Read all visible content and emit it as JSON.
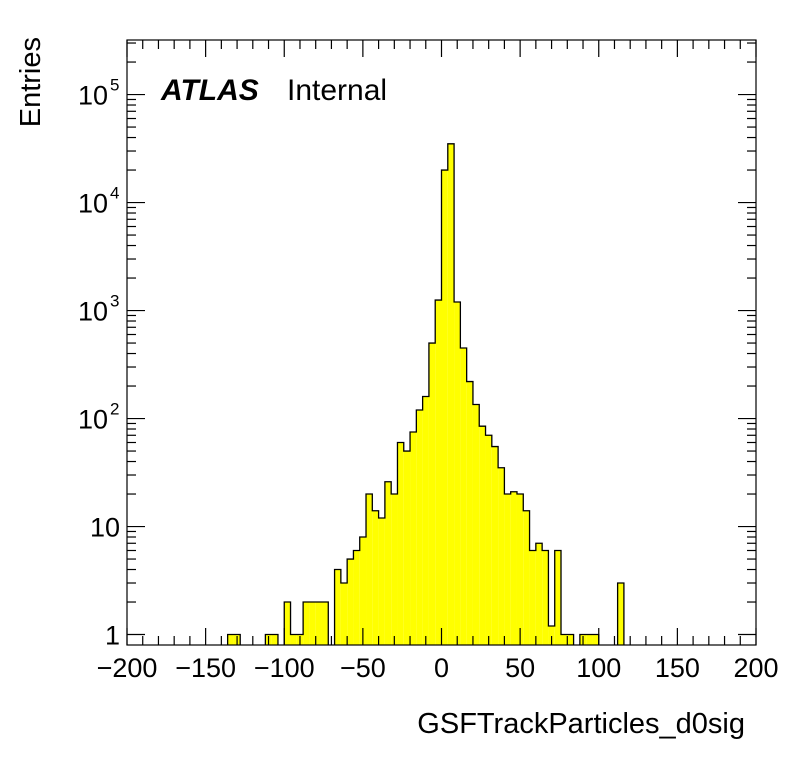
{
  "chart_data": {
    "type": "histogram",
    "xlabel": "GSFTrackParticles_d0sig",
    "ylabel": "Entries",
    "xlim": [
      -200,
      200
    ],
    "ylim": [
      0.8,
      320000
    ],
    "yscale": "log",
    "bin_width": 4,
    "fill_color": "#ffff00",
    "line_color": "#000000",
    "x_ticks": [
      -200,
      -150,
      -100,
      -50,
      0,
      50,
      100,
      150,
      200
    ],
    "x_tick_labels": [
      "−200",
      "−150",
      "−100",
      "−50",
      "0",
      "50",
      "100",
      "150",
      "200"
    ],
    "y_ticks": [
      1,
      10,
      100,
      1000,
      10000,
      100000
    ],
    "y_tick_labels": [
      {
        "base": "1",
        "exp": ""
      },
      {
        "base": "10",
        "exp": ""
      },
      {
        "base": "10",
        "exp": "2"
      },
      {
        "base": "10",
        "exp": "3"
      },
      {
        "base": "10",
        "exp": "4"
      },
      {
        "base": "10",
        "exp": "5"
      }
    ],
    "atlas_label": "ATLAS",
    "atlas_status": "Internal",
    "bins": [
      {
        "x": -136,
        "y": 1
      },
      {
        "x": -132,
        "y": 1
      },
      {
        "x": -112,
        "y": 1
      },
      {
        "x": -108,
        "y": 1
      },
      {
        "x": -100,
        "y": 2
      },
      {
        "x": -96,
        "y": 1
      },
      {
        "x": -92,
        "y": 1
      },
      {
        "x": -88,
        "y": 2
      },
      {
        "x": -84,
        "y": 2
      },
      {
        "x": -80,
        "y": 2
      },
      {
        "x": -76,
        "y": 2
      },
      {
        "x": -68,
        "y": 4
      },
      {
        "x": -64,
        "y": 3
      },
      {
        "x": -60,
        "y": 5
      },
      {
        "x": -56,
        "y": 6
      },
      {
        "x": -52,
        "y": 8
      },
      {
        "x": -48,
        "y": 20
      },
      {
        "x": -44,
        "y": 14
      },
      {
        "x": -40,
        "y": 12
      },
      {
        "x": -36,
        "y": 26
      },
      {
        "x": -32,
        "y": 20
      },
      {
        "x": -28,
        "y": 60
      },
      {
        "x": -24,
        "y": 50
      },
      {
        "x": -20,
        "y": 75
      },
      {
        "x": -16,
        "y": 120
      },
      {
        "x": -12,
        "y": 160
      },
      {
        "x": -8,
        "y": 500
      },
      {
        "x": -4,
        "y": 1250
      },
      {
        "x": 0,
        "y": 20000
      },
      {
        "x": 4,
        "y": 35000
      },
      {
        "x": 8,
        "y": 1200
      },
      {
        "x": 12,
        "y": 450
      },
      {
        "x": 16,
        "y": 220
      },
      {
        "x": 20,
        "y": 135
      },
      {
        "x": 24,
        "y": 85
      },
      {
        "x": 28,
        "y": 70
      },
      {
        "x": 32,
        "y": 55
      },
      {
        "x": 36,
        "y": 35
      },
      {
        "x": 40,
        "y": 20
      },
      {
        "x": 44,
        "y": 21
      },
      {
        "x": 48,
        "y": 20
      },
      {
        "x": 52,
        "y": 14
      },
      {
        "x": 56,
        "y": 6
      },
      {
        "x": 60,
        "y": 7
      },
      {
        "x": 64,
        "y": 6
      },
      {
        "x": 68,
        "y": 1.2
      },
      {
        "x": 72,
        "y": 6
      },
      {
        "x": 76,
        "y": 1
      },
      {
        "x": 80,
        "y": 1
      },
      {
        "x": 88,
        "y": 1
      },
      {
        "x": 92,
        "y": 1
      },
      {
        "x": 96,
        "y": 1
      },
      {
        "x": 112,
        "y": 3
      }
    ]
  }
}
